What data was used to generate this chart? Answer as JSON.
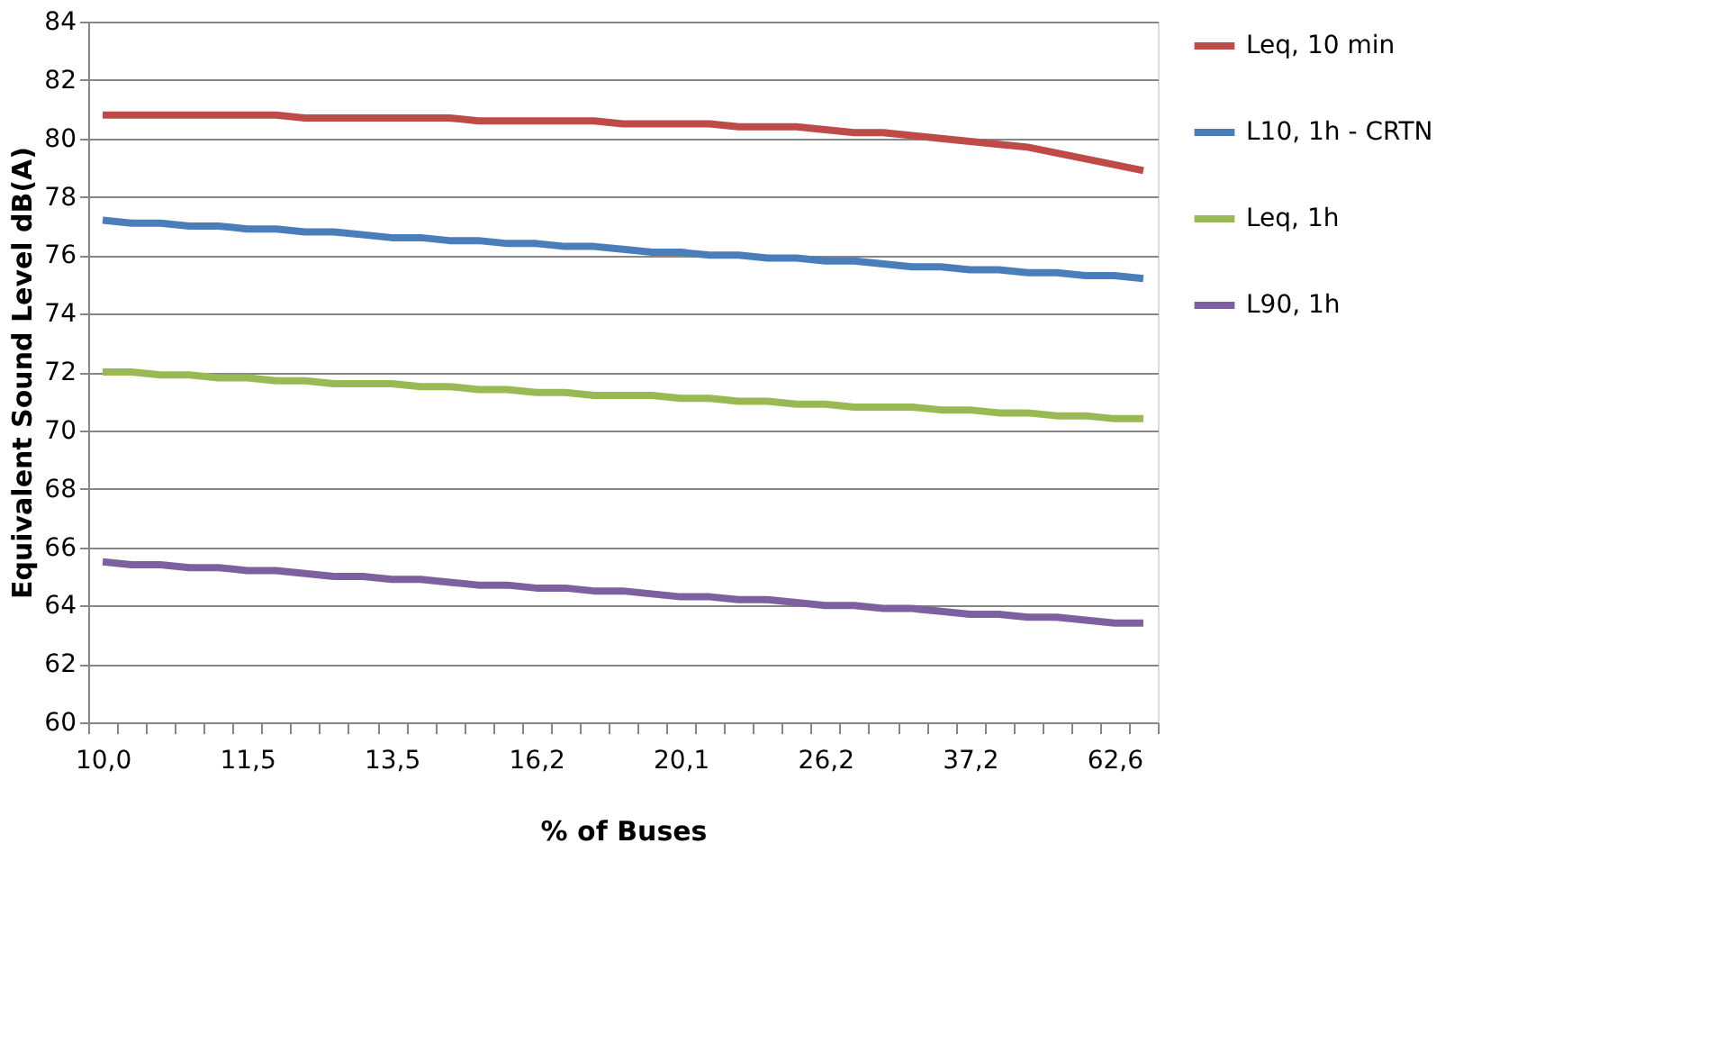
{
  "chart_data": {
    "type": "line",
    "xlabel": "% of Buses",
    "ylabel": "Equivalent Sound Level dB(A)",
    "categories": [
      "10,0",
      null,
      null,
      null,
      null,
      "11,5",
      null,
      null,
      null,
      null,
      "13,5",
      null,
      null,
      null,
      null,
      "16,2",
      null,
      null,
      null,
      null,
      "20,1",
      null,
      null,
      null,
      null,
      "26,2",
      null,
      null,
      null,
      null,
      "37,2",
      null,
      null,
      null,
      null,
      "62,6",
      null
    ],
    "series": [
      {
        "name": "Leq, 10 min",
        "color": "#be4b48",
        "values": [
          80.8,
          80.8,
          80.8,
          80.8,
          80.8,
          80.8,
          80.8,
          80.7,
          80.7,
          80.7,
          80.7,
          80.7,
          80.7,
          80.6,
          80.6,
          80.6,
          80.6,
          80.6,
          80.5,
          80.5,
          80.5,
          80.5,
          80.4,
          80.4,
          80.4,
          80.3,
          80.2,
          80.2,
          80.1,
          80.0,
          79.9,
          79.8,
          79.7,
          79.5,
          79.3,
          79.1,
          78.9
        ]
      },
      {
        "name": "L10, 1h - CRTN",
        "color": "#4a7ebb",
        "values": [
          77.2,
          77.1,
          77.1,
          77.0,
          77.0,
          76.9,
          76.9,
          76.8,
          76.8,
          76.7,
          76.6,
          76.6,
          76.5,
          76.5,
          76.4,
          76.4,
          76.3,
          76.3,
          76.2,
          76.1,
          76.1,
          76.0,
          76.0,
          75.9,
          75.9,
          75.8,
          75.8,
          75.7,
          75.6,
          75.6,
          75.5,
          75.5,
          75.4,
          75.4,
          75.3,
          75.3,
          75.2
        ]
      },
      {
        "name": "Leq, 1h",
        "color": "#98b954",
        "values": [
          72.0,
          72.0,
          71.9,
          71.9,
          71.8,
          71.8,
          71.7,
          71.7,
          71.6,
          71.6,
          71.6,
          71.5,
          71.5,
          71.4,
          71.4,
          71.3,
          71.3,
          71.2,
          71.2,
          71.2,
          71.1,
          71.1,
          71.0,
          71.0,
          70.9,
          70.9,
          70.8,
          70.8,
          70.8,
          70.7,
          70.7,
          70.6,
          70.6,
          70.5,
          70.5,
          70.4,
          70.4
        ]
      },
      {
        "name": "L90, 1h",
        "color": "#7d60a0",
        "values": [
          65.5,
          65.4,
          65.4,
          65.3,
          65.3,
          65.2,
          65.2,
          65.1,
          65.0,
          65.0,
          64.9,
          64.9,
          64.8,
          64.7,
          64.7,
          64.6,
          64.6,
          64.5,
          64.5,
          64.4,
          64.3,
          64.3,
          64.2,
          64.2,
          64.1,
          64.0,
          64.0,
          63.9,
          63.9,
          63.8,
          63.7,
          63.7,
          63.6,
          63.6,
          63.5,
          63.4,
          63.4
        ]
      }
    ],
    "ylim": [
      60,
      84
    ],
    "yticks": [
      60,
      62,
      64,
      66,
      68,
      70,
      72,
      74,
      76,
      78,
      80,
      82,
      84
    ],
    "grid": "y",
    "legend": "right",
    "marker": "none",
    "line_style": "solid"
  }
}
